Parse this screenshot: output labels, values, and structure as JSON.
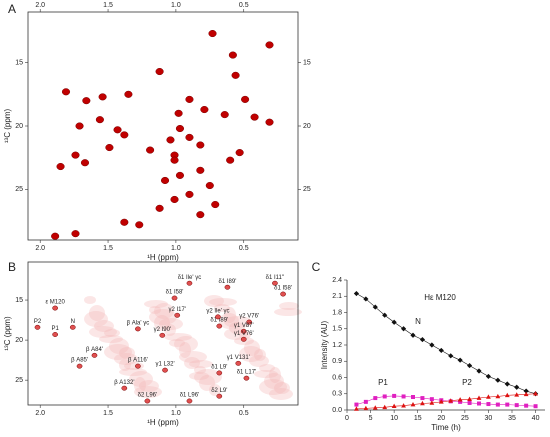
{
  "chart_data": [
    {
      "type": "scatter",
      "panel": "A",
      "xlabel": "¹H (ppm)",
      "ylabel": "¹³C (ppm)",
      "color": "#c00000",
      "xlim": [
        2.09,
        0.1
      ],
      "ylim": [
        29,
        11
      ],
      "xticks": [
        {
          "value": 2,
          "label": "2.0"
        },
        1.5,
        {
          "value": 1,
          "label": "1.0"
        },
        0.5
      ],
      "yticks": [
        15,
        20,
        25
      ],
      "mirror_ticks": true,
      "x": [
        0.73,
        0.31,
        0.58,
        1.12,
        0.56,
        1.81,
        1.54,
        1.66,
        1.35,
        0.9,
        0.49,
        0.79,
        0.98,
        0.64,
        0.42,
        0.31,
        1.56,
        1.71,
        1.43,
        1.38,
        0.97,
        1.04,
        0.9,
        0.82,
        1.49,
        1.74,
        1.67,
        1.85,
        1.01,
        0.6,
        0.53,
        0.82,
        0.97,
        1.08,
        0.75,
        0.9,
        1.01,
        0.71,
        1.12,
        0.82,
        1.38,
        1.27,
        1.74,
        1.89,
        1.01,
        1.19
      ],
      "y": [
        12.7,
        13.6,
        14.4,
        15.7,
        16.0,
        17.3,
        17.7,
        18.0,
        17.5,
        17.9,
        17.9,
        18.7,
        19.0,
        19.1,
        19.3,
        19.7,
        19.5,
        20.0,
        20.3,
        20.7,
        20.2,
        21.1,
        20.9,
        21.5,
        21.7,
        22.3,
        22.9,
        23.2,
        22.3,
        22.7,
        22.1,
        23.5,
        23.9,
        24.3,
        24.7,
        25.4,
        25.8,
        26.2,
        26.5,
        27.0,
        27.6,
        27.8,
        28.5,
        28.7,
        22.7,
        21.9
      ]
    },
    {
      "type": "scatter",
      "panel": "B",
      "xlabel": "¹H (ppm)",
      "ylabel": "¹³C (ppm)",
      "color": "#e05050",
      "xlim": [
        2.09,
        0.1
      ],
      "ylim": [
        28.1,
        10.25
      ],
      "xticks": [
        {
          "value": 2,
          "label": "2.0"
        },
        1.5,
        {
          "value": 1,
          "label": "1.0"
        },
        0.5
      ],
      "yticks": [
        15,
        20,
        25
      ],
      "mirror_ticks": false,
      "labels": [
        "ε M120",
        "P2",
        "P1",
        "N",
        "δ1 Ile' γc",
        "δ1 I58'",
        "δ1 I89'",
        "δ1 I11''",
        "δ1 I58'",
        "γ2 I17'",
        "δ1 I89'",
        "β Ala' γc",
        "γ2 I90'",
        "γ2 Ile' γc",
        "γ2 V76'",
        "γ1 V87'",
        "γ1 V76'",
        "β A84'",
        "β A85'",
        "β A116'",
        "γ1 L32'",
        "γ1 V131'",
        "δ1 L9'",
        "δ1 L17'",
        "β A132'",
        "δ2 L96'",
        "δ1 L96'",
        "δ2 L9'"
      ],
      "label_colors": [
        "#222",
        "#3333aa",
        "#cc0000",
        "#222",
        "#222",
        "#222",
        "#222",
        "#222",
        "#222",
        "#222",
        "#222",
        "#222",
        "#222",
        "#222",
        "#222",
        "#222",
        "#222",
        "#222",
        "#222",
        "#222",
        "#222",
        "#222",
        "#222",
        "#222",
        "#222",
        "#222",
        "#222",
        "#222"
      ],
      "x": [
        1.89,
        2.02,
        1.89,
        1.76,
        0.9,
        1.01,
        0.62,
        0.27,
        0.21,
        0.99,
        0.68,
        1.28,
        1.1,
        0.69,
        0.46,
        0.5,
        0.5,
        1.6,
        1.71,
        1.28,
        1.08,
        0.54,
        0.68,
        0.48,
        1.38,
        1.21,
        0.9,
        0.68
      ],
      "y": [
        16.0,
        18.4,
        19.3,
        18.4,
        12.9,
        14.75,
        13.4,
        12.9,
        14.25,
        16.9,
        18.25,
        18.6,
        19.4,
        17.1,
        17.75,
        18.9,
        19.9,
        21.9,
        23.25,
        23.25,
        23.75,
        22.9,
        24.1,
        24.75,
        26.0,
        27.6,
        27.6,
        27.0
      ]
    },
    {
      "type": "line",
      "panel": "C",
      "title": "Hε M120",
      "xlabel": "Time (h)",
      "ylabel": "Intensity (AU)",
      "xlim": [
        0,
        42
      ],
      "ylim": [
        0,
        2.4
      ],
      "xticks": [
        0,
        5,
        10,
        15,
        20,
        25,
        30,
        35,
        40
      ],
      "yticks": [
        {
          "value": 0,
          "label": "0.0"
        },
        0.3,
        0.6,
        0.9,
        1.2,
        1.5,
        1.8,
        2.1,
        2.4
      ],
      "x": [
        2,
        4,
        6,
        8,
        10,
        12,
        14,
        16,
        18,
        20,
        22,
        24,
        26,
        28,
        30,
        32,
        34,
        36,
        38,
        40
      ],
      "series": [
        {
          "name": "N",
          "color": "#111111",
          "label_color": "#111111",
          "marker": "diamond",
          "values": [
            2.15,
            2.05,
            1.9,
            1.75,
            1.62,
            1.5,
            1.38,
            1.3,
            1.2,
            1.1,
            1.0,
            0.92,
            0.82,
            0.72,
            0.62,
            0.55,
            0.48,
            0.42,
            0.35,
            0.3
          ]
        },
        {
          "name": "P1",
          "color": "#e020c0",
          "label_color": "#3333aa",
          "marker": "square",
          "values": [
            0.1,
            0.15,
            0.22,
            0.25,
            0.26,
            0.25,
            0.24,
            0.22,
            0.2,
            0.18,
            0.16,
            0.15,
            0.13,
            0.12,
            0.11,
            0.1,
            0.1,
            0.09,
            0.08,
            0.07
          ]
        },
        {
          "name": "P2",
          "color": "#dd1111",
          "label_color": "#dd1111",
          "marker": "triangle",
          "values": [
            0.02,
            0.03,
            0.04,
            0.05,
            0.07,
            0.08,
            0.1,
            0.12,
            0.13,
            0.15,
            0.17,
            0.19,
            0.2,
            0.22,
            0.24,
            0.25,
            0.27,
            0.28,
            0.29,
            0.3
          ]
        }
      ]
    }
  ]
}
